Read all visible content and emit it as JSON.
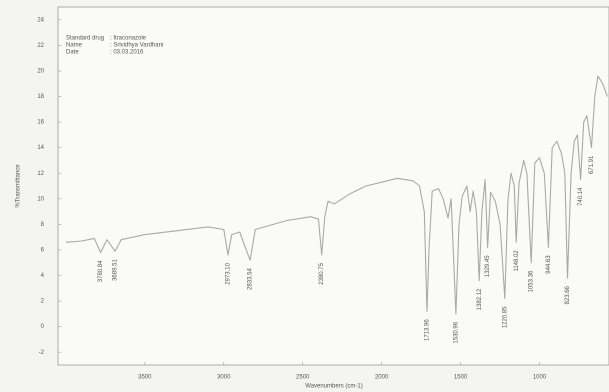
{
  "chart_data": {
    "type": "line",
    "info": [
      [
        "Standard drug",
        ": Itraconazole"
      ],
      [
        "Name",
        ": Srividhya Vardhani"
      ],
      [
        "Date",
        ": 03.03.2016"
      ]
    ],
    "xlabel": "Wavenumbers (cm-1)",
    "ylabel": "%Transmittance",
    "xlim": [
      4050,
      560
    ],
    "ylim": [
      -3,
      25
    ],
    "xticks": [
      3500,
      3000,
      2500,
      2000,
      1500,
      1000
    ],
    "yticks": [
      -2,
      0,
      2,
      4,
      6,
      8,
      10,
      12,
      14,
      16,
      18,
      20,
      22,
      24
    ],
    "x": [
      4000,
      3900,
      3820,
      3780,
      3740,
      3689,
      3650,
      3500,
      3300,
      3100,
      3000,
      2973,
      2950,
      2900,
      2833,
      2800,
      2600,
      2450,
      2400,
      2380,
      2360,
      2340,
      2300,
      2200,
      2100,
      2000,
      1900,
      1800,
      1760,
      1730,
      1713,
      1700,
      1680,
      1640,
      1610,
      1580,
      1560,
      1530,
      1510,
      1490,
      1460,
      1440,
      1420,
      1400,
      1382,
      1365,
      1345,
      1329,
      1310,
      1280,
      1250,
      1220,
      1200,
      1180,
      1160,
      1148,
      1130,
      1100,
      1080,
      1053,
      1030,
      1000,
      970,
      944,
      920,
      890,
      860,
      840,
      823,
      800,
      780,
      760,
      740,
      720,
      700,
      671,
      650,
      630,
      600,
      570
    ],
    "series": [
      {
        "name": "Itraconazole",
        "color": "#a9a9a9",
        "values": [
          6.6,
          6.7,
          6.9,
          5.8,
          6.8,
          5.9,
          6.8,
          7.2,
          7.5,
          7.8,
          7.6,
          5.6,
          7.2,
          7.4,
          5.2,
          7.6,
          8.3,
          8.6,
          8.4,
          5.6,
          8.6,
          9.8,
          9.6,
          10.4,
          11.0,
          11.3,
          11.6,
          11.4,
          11.0,
          9.0,
          1.2,
          6.0,
          10.6,
          10.8,
          10.0,
          8.5,
          10.0,
          1.0,
          8.0,
          10.2,
          11.0,
          9.0,
          10.6,
          9.0,
          3.6,
          9.0,
          11.5,
          6.2,
          10.5,
          9.8,
          8.0,
          2.2,
          10.0,
          12.0,
          11.0,
          6.6,
          11.2,
          13.0,
          12.0,
          5.0,
          12.8,
          13.2,
          12.0,
          6.2,
          14.0,
          14.5,
          13.5,
          12.0,
          3.8,
          12.0,
          14.5,
          15.0,
          11.5,
          16.0,
          16.5,
          14.0,
          18.0,
          19.6,
          19.0,
          18.0
        ]
      }
    ],
    "peaks": [
      {
        "x": 3780.84,
        "label": "3780.84"
      },
      {
        "x": 3689.51,
        "label": "3689.51"
      },
      {
        "x": 2973.1,
        "label": "2973.10"
      },
      {
        "x": 2833.54,
        "label": "2833.54"
      },
      {
        "x": 2380.75,
        "label": "2380.75"
      },
      {
        "x": 1713.96,
        "label": "1713.96"
      },
      {
        "x": 1530.96,
        "label": "1530.96"
      },
      {
        "x": 1382.12,
        "label": "1382.12"
      },
      {
        "x": 1329.45,
        "label": "1329.45"
      },
      {
        "x": 1220.85,
        "label": "1220.85"
      },
      {
        "x": 1148.02,
        "label": "1148.02"
      },
      {
        "x": 1053.36,
        "label": "1053.36"
      },
      {
        "x": 944.63,
        "label": "944.63"
      },
      {
        "x": 823.66,
        "label": "823.66"
      },
      {
        "x": 740.14,
        "label": "740.14"
      },
      {
        "x": 671.91,
        "label": "671.91"
      }
    ]
  }
}
